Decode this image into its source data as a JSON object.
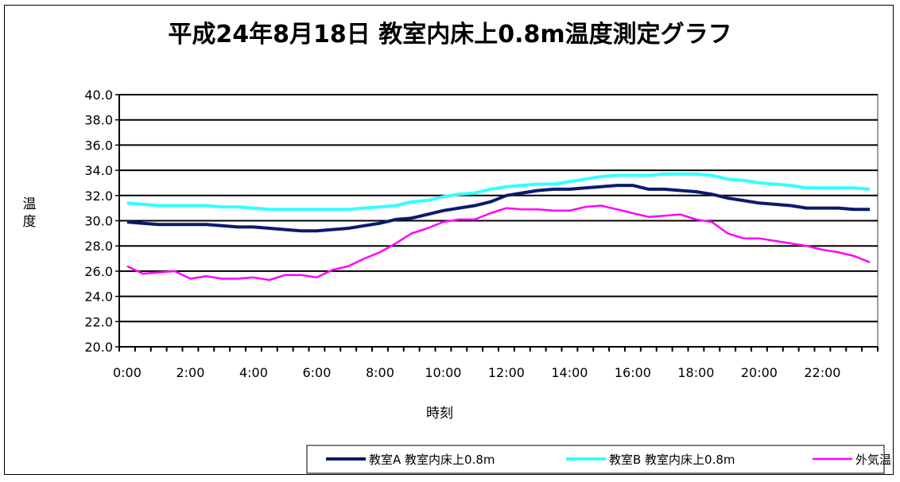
{
  "chart_data": {
    "type": "line",
    "title": "平成24年8月18日 教室内床上0.8m温度測定グラフ",
    "xlabel": "時刻",
    "ylabel": "温度",
    "ylim": [
      20.0,
      40.0
    ],
    "yticks": [
      "20.0",
      "22.0",
      "24.0",
      "26.0",
      "28.0",
      "30.0",
      "32.0",
      "34.0",
      "36.0",
      "38.0",
      "40.0"
    ],
    "xtick_labels": [
      "0:00",
      "2:00",
      "4:00",
      "6:00",
      "8:00",
      "10:00",
      "12:00",
      "14:00",
      "16:00",
      "18:00",
      "20:00",
      "22:00"
    ],
    "x": [
      "0:00",
      "0:30",
      "1:00",
      "1:30",
      "2:00",
      "2:30",
      "3:00",
      "3:30",
      "4:00",
      "4:30",
      "5:00",
      "5:30",
      "6:00",
      "6:30",
      "7:00",
      "7:30",
      "8:00",
      "8:30",
      "9:00",
      "9:30",
      "10:00",
      "10:30",
      "11:00",
      "11:30",
      "12:00",
      "12:30",
      "13:00",
      "13:30",
      "14:00",
      "14:30",
      "15:00",
      "15:30",
      "16:00",
      "16:30",
      "17:00",
      "17:30",
      "18:00",
      "18:30",
      "19:00",
      "19:30",
      "20:00",
      "20:30",
      "21:00",
      "21:30",
      "22:00",
      "22:30",
      "23:00",
      "23:30"
    ],
    "grid": true,
    "legend_position": "bottom-right",
    "series": [
      {
        "name": "教室A 教室内床上0.8m",
        "color": "#0A1A6E",
        "values": [
          29.9,
          29.8,
          29.7,
          29.7,
          29.7,
          29.7,
          29.6,
          29.5,
          29.5,
          29.4,
          29.3,
          29.2,
          29.2,
          29.3,
          29.4,
          29.6,
          29.8,
          30.1,
          30.2,
          30.5,
          30.8,
          31.0,
          31.2,
          31.5,
          32.0,
          32.2,
          32.4,
          32.5,
          32.5,
          32.6,
          32.7,
          32.8,
          32.8,
          32.5,
          32.5,
          32.4,
          32.3,
          32.1,
          31.8,
          31.6,
          31.4,
          31.3,
          31.2,
          31.0,
          31.0,
          31.0,
          30.9,
          30.9
        ]
      },
      {
        "name": "教室B 教室内床上0.8m",
        "color": "#33FFFF",
        "values": [
          31.4,
          31.3,
          31.2,
          31.2,
          31.2,
          31.2,
          31.1,
          31.1,
          31.0,
          30.9,
          30.9,
          30.9,
          30.9,
          30.9,
          30.9,
          31.0,
          31.1,
          31.2,
          31.5,
          31.6,
          31.9,
          32.1,
          32.2,
          32.5,
          32.7,
          32.8,
          32.9,
          32.9,
          33.1,
          33.3,
          33.5,
          33.6,
          33.6,
          33.6,
          33.7,
          33.7,
          33.7,
          33.6,
          33.3,
          33.2,
          33.0,
          32.9,
          32.8,
          32.6,
          32.6,
          32.6,
          32.6,
          32.5
        ]
      },
      {
        "name": "外気温",
        "color": "#FF00FF",
        "values": [
          26.4,
          25.8,
          25.9,
          26.0,
          25.4,
          25.6,
          25.4,
          25.4,
          25.5,
          25.3,
          25.7,
          25.7,
          25.5,
          26.1,
          26.4,
          27.0,
          27.5,
          28.2,
          29.0,
          29.4,
          29.9,
          30.1,
          30.1,
          30.6,
          31.0,
          30.9,
          30.9,
          30.8,
          30.8,
          31.1,
          31.2,
          30.9,
          30.6,
          30.3,
          30.4,
          30.5,
          30.1,
          29.9,
          29.0,
          28.6,
          28.6,
          28.4,
          28.2,
          28.0,
          27.7,
          27.5,
          27.2,
          26.7
        ]
      }
    ]
  }
}
